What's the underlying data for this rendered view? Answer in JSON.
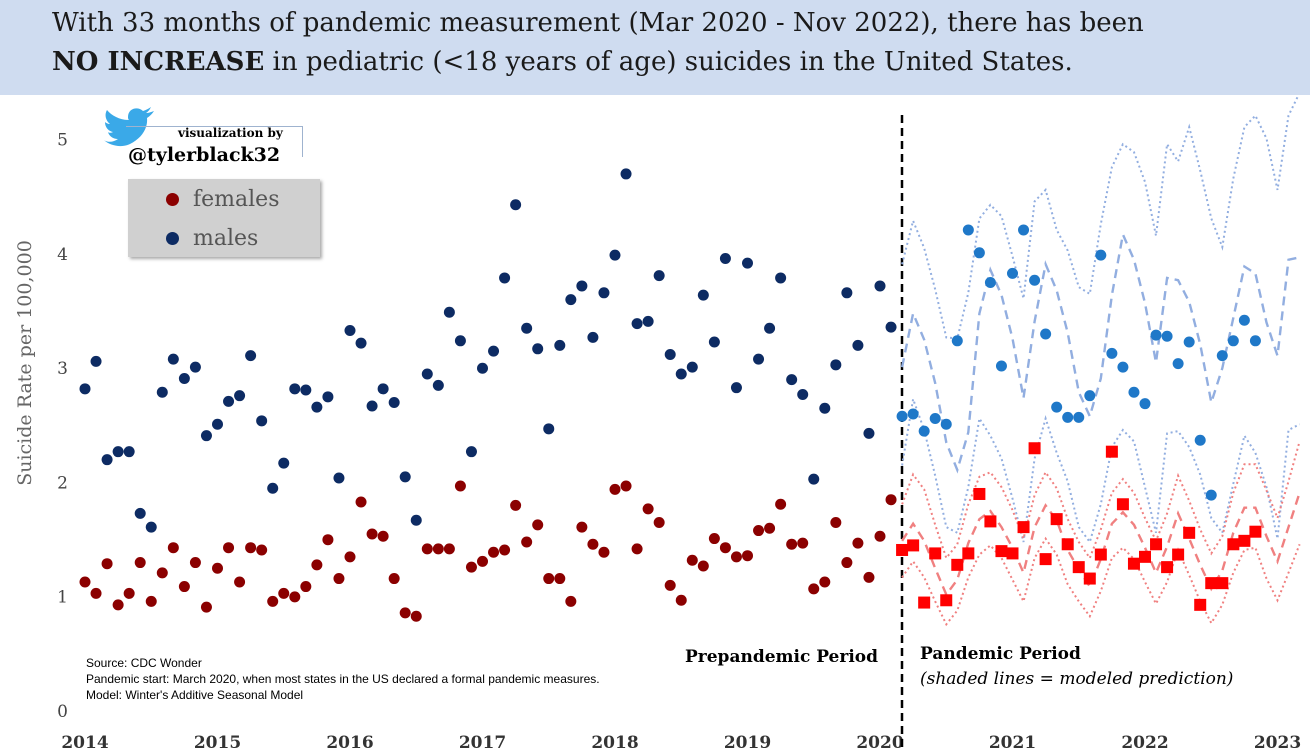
{
  "title": {
    "line1": "With 33 months of pandemic measurement (Mar 2020 - Nov 2022), there has been",
    "line2_bold": "NO INCREASE",
    "line2_rest": " in pediatric (<18 years of age) suicides in the United States."
  },
  "credit": {
    "by": "visualization by",
    "handle": "@tylerblack32",
    "icon": "twitter-bird-icon"
  },
  "notes": [
    "Source: CDC Wonder",
    "Pandemic start: March 2020, when most states in the US declared a formal pandemic measures.",
    "Model: Winter's Additive Seasonal Model"
  ],
  "period_labels": {
    "prepandemic": "Prepandemic Period",
    "pandemic": "Pandemic Period",
    "pandemic_note": "(shaded lines = modeled prediction)"
  },
  "colors": {
    "banner": "#cfdcf0",
    "female": "#8b0000",
    "male": "#0d2b63",
    "female_pandemic": "#ff0000",
    "male_pandemic": "#1f78c8",
    "male_model": "#92aee0",
    "female_model": "#f08080",
    "divider": "#000000"
  },
  "chart_data": {
    "type": "scatter",
    "ylabel": "Suicide Rate per 100,000",
    "xlabel": "",
    "ylim": [
      0,
      5.5
    ],
    "yticks": [
      0,
      1,
      2,
      3,
      4,
      5
    ],
    "xticks": [
      "2014",
      "2015",
      "2016",
      "2017",
      "2018",
      "2019",
      "2020",
      "2021",
      "2022",
      "2023"
    ],
    "x_domain": [
      "2014-01",
      "2023-03"
    ],
    "pandemic_start": "2020-03",
    "legend": {
      "position": "top-left",
      "entries": [
        "females",
        "males"
      ]
    },
    "series": [
      {
        "name": "females",
        "marker": "circle",
        "start": "2014-01",
        "values": [
          1.12,
          1.02,
          1.28,
          0.92,
          1.02,
          1.29,
          0.95,
          1.2,
          1.42,
          1.08,
          1.29,
          0.9,
          1.24,
          1.42,
          1.12,
          1.42,
          1.4,
          0.95,
          1.02,
          0.99,
          1.08,
          1.27,
          1.49,
          1.15,
          1.34,
          1.82,
          1.54,
          1.52,
          1.15,
          0.85,
          0.82,
          1.41,
          1.41,
          1.41,
          1.96,
          1.25,
          1.3,
          1.38,
          1.4,
          1.79,
          1.47,
          1.62,
          1.15,
          1.15,
          0.95,
          1.6,
          1.45,
          1.38,
          1.93,
          1.96,
          1.41,
          1.76,
          1.64,
          1.09,
          0.96,
          1.31,
          1.26,
          1.5,
          1.42,
          1.34,
          1.35,
          1.57,
          1.59,
          1.8,
          1.45,
          1.46,
          1.06,
          1.12,
          1.64,
          1.29,
          1.46,
          1.16,
          1.52,
          1.84
        ]
      },
      {
        "name": "males",
        "marker": "circle",
        "start": "2014-01",
        "values": [
          2.81,
          3.05,
          2.19,
          2.26,
          2.26,
          1.72,
          1.6,
          2.78,
          3.07,
          2.9,
          3.0,
          2.4,
          2.5,
          2.7,
          2.75,
          3.1,
          2.53,
          1.94,
          2.16,
          2.81,
          2.8,
          2.65,
          2.74,
          2.03,
          3.32,
          3.21,
          2.66,
          2.81,
          2.69,
          2.04,
          1.66,
          2.94,
          2.84,
          3.48,
          3.23,
          2.26,
          2.99,
          3.14,
          3.78,
          4.42,
          3.34,
          3.16,
          2.46,
          3.19,
          3.59,
          3.71,
          3.26,
          3.65,
          3.98,
          4.69,
          3.38,
          3.4,
          3.8,
          3.11,
          2.94,
          3.0,
          3.63,
          3.22,
          3.95,
          2.82,
          3.91,
          3.07,
          3.34,
          3.78,
          2.89,
          2.76,
          2.02,
          2.64,
          3.02,
          3.65,
          3.19,
          2.42,
          3.71,
          3.35
        ]
      },
      {
        "name": "females (pandemic)",
        "marker": "square",
        "start": "2020-03",
        "values": [
          1.4,
          1.44,
          0.94,
          1.37,
          0.96,
          1.27,
          1.37,
          1.89,
          1.65,
          1.39,
          1.37,
          1.6,
          2.29,
          1.32,
          1.67,
          1.45,
          1.25,
          1.15,
          1.36,
          2.26,
          1.8,
          1.28,
          1.34,
          1.45,
          1.25,
          1.36,
          1.55,
          0.92,
          1.11,
          1.11,
          1.45,
          1.48,
          1.56
        ]
      },
      {
        "name": "males (pandemic)",
        "marker": "circle",
        "start": "2020-03",
        "values": [
          2.57,
          2.59,
          2.44,
          2.55,
          2.5,
          3.23,
          4.2,
          4.0,
          3.74,
          3.01,
          3.82,
          4.2,
          3.76,
          3.29,
          2.65,
          2.56,
          2.56,
          2.75,
          3.98,
          3.12,
          3.0,
          2.78,
          2.68,
          3.28,
          3.27,
          3.03,
          3.22,
          2.36,
          1.88,
          3.1,
          3.23,
          3.41,
          3.23
        ]
      },
      {
        "name": "males model (predicted)",
        "style": "dashed",
        "start": "2020-03",
        "values": [
          3.0,
          3.47,
          3.24,
          2.86,
          2.34,
          2.1,
          2.43,
          3.47,
          3.85,
          3.63,
          3.25,
          2.73,
          3.4,
          3.9,
          3.67,
          3.3,
          2.78,
          2.57,
          2.9,
          3.63,
          4.16,
          3.94,
          3.56,
          3.04,
          3.78,
          3.76,
          3.57,
          3.2,
          2.69,
          2.99,
          3.43,
          3.88,
          3.82,
          3.39,
          3.1,
          3.94,
          3.96
        ]
      },
      {
        "name": "males model upper",
        "style": "dotted",
        "start": "2020-03",
        "values": [
          3.9,
          4.28,
          4.04,
          3.68,
          3.26,
          3.25,
          3.65,
          4.3,
          4.42,
          4.32,
          3.97,
          3.6,
          4.45,
          4.55,
          4.2,
          4.02,
          3.7,
          3.64,
          4.25,
          4.75,
          4.95,
          4.88,
          4.62,
          4.15,
          4.95,
          4.8,
          5.1,
          4.72,
          4.3,
          4.05,
          4.65,
          5.1,
          5.2,
          5.0,
          4.55,
          5.2,
          5.4
        ]
      },
      {
        "name": "males model lower",
        "style": "dotted",
        "start": "2020-03",
        "values": [
          2.14,
          2.72,
          2.45,
          2.05,
          1.6,
          1.55,
          1.95,
          2.55,
          2.4,
          2.2,
          1.85,
          1.47,
          2.2,
          2.55,
          2.25,
          2.0,
          1.6,
          1.47,
          1.8,
          2.3,
          2.45,
          2.35,
          1.95,
          1.55,
          2.42,
          2.44,
          2.3,
          2.06,
          1.68,
          1.55,
          1.98,
          2.4,
          2.25,
          1.95,
          1.5,
          2.45,
          2.5
        ]
      },
      {
        "name": "females model (predicted)",
        "style": "dashed",
        "start": "2020-03",
        "values": [
          1.48,
          1.63,
          1.48,
          1.24,
          1.01,
          1.14,
          1.46,
          1.67,
          1.74,
          1.6,
          1.42,
          1.2,
          1.6,
          1.79,
          1.66,
          1.4,
          1.23,
          1.08,
          1.32,
          1.63,
          1.73,
          1.62,
          1.42,
          1.2,
          1.43,
          1.72,
          1.5,
          1.27,
          1.06,
          1.22,
          1.55,
          1.77,
          1.77,
          1.52,
          1.3,
          1.6,
          1.9
        ]
      },
      {
        "name": "females model upper",
        "style": "dotted",
        "start": "2020-03",
        "values": [
          1.8,
          2.06,
          1.93,
          1.62,
          1.33,
          1.45,
          1.8,
          2.04,
          2.08,
          1.95,
          1.75,
          1.5,
          1.88,
          2.08,
          1.94,
          1.67,
          1.47,
          1.33,
          1.58,
          1.9,
          2.02,
          1.9,
          1.68,
          1.48,
          1.72,
          2.05,
          1.83,
          1.58,
          1.37,
          1.52,
          1.9,
          2.15,
          2.15,
          1.92,
          1.68,
          2.0,
          2.35
        ]
      },
      {
        "name": "females model lower",
        "style": "dotted",
        "start": "2020-03",
        "values": [
          1.16,
          1.3,
          1.16,
          0.95,
          0.75,
          0.87,
          1.16,
          1.36,
          1.44,
          1.33,
          1.14,
          0.95,
          1.33,
          1.5,
          1.36,
          1.1,
          0.95,
          0.82,
          1.04,
          1.33,
          1.42,
          1.32,
          1.12,
          0.93,
          1.12,
          1.4,
          1.18,
          0.95,
          0.76,
          0.92,
          1.2,
          1.4,
          1.42,
          1.15,
          0.96,
          1.2,
          1.45
        ]
      }
    ]
  }
}
